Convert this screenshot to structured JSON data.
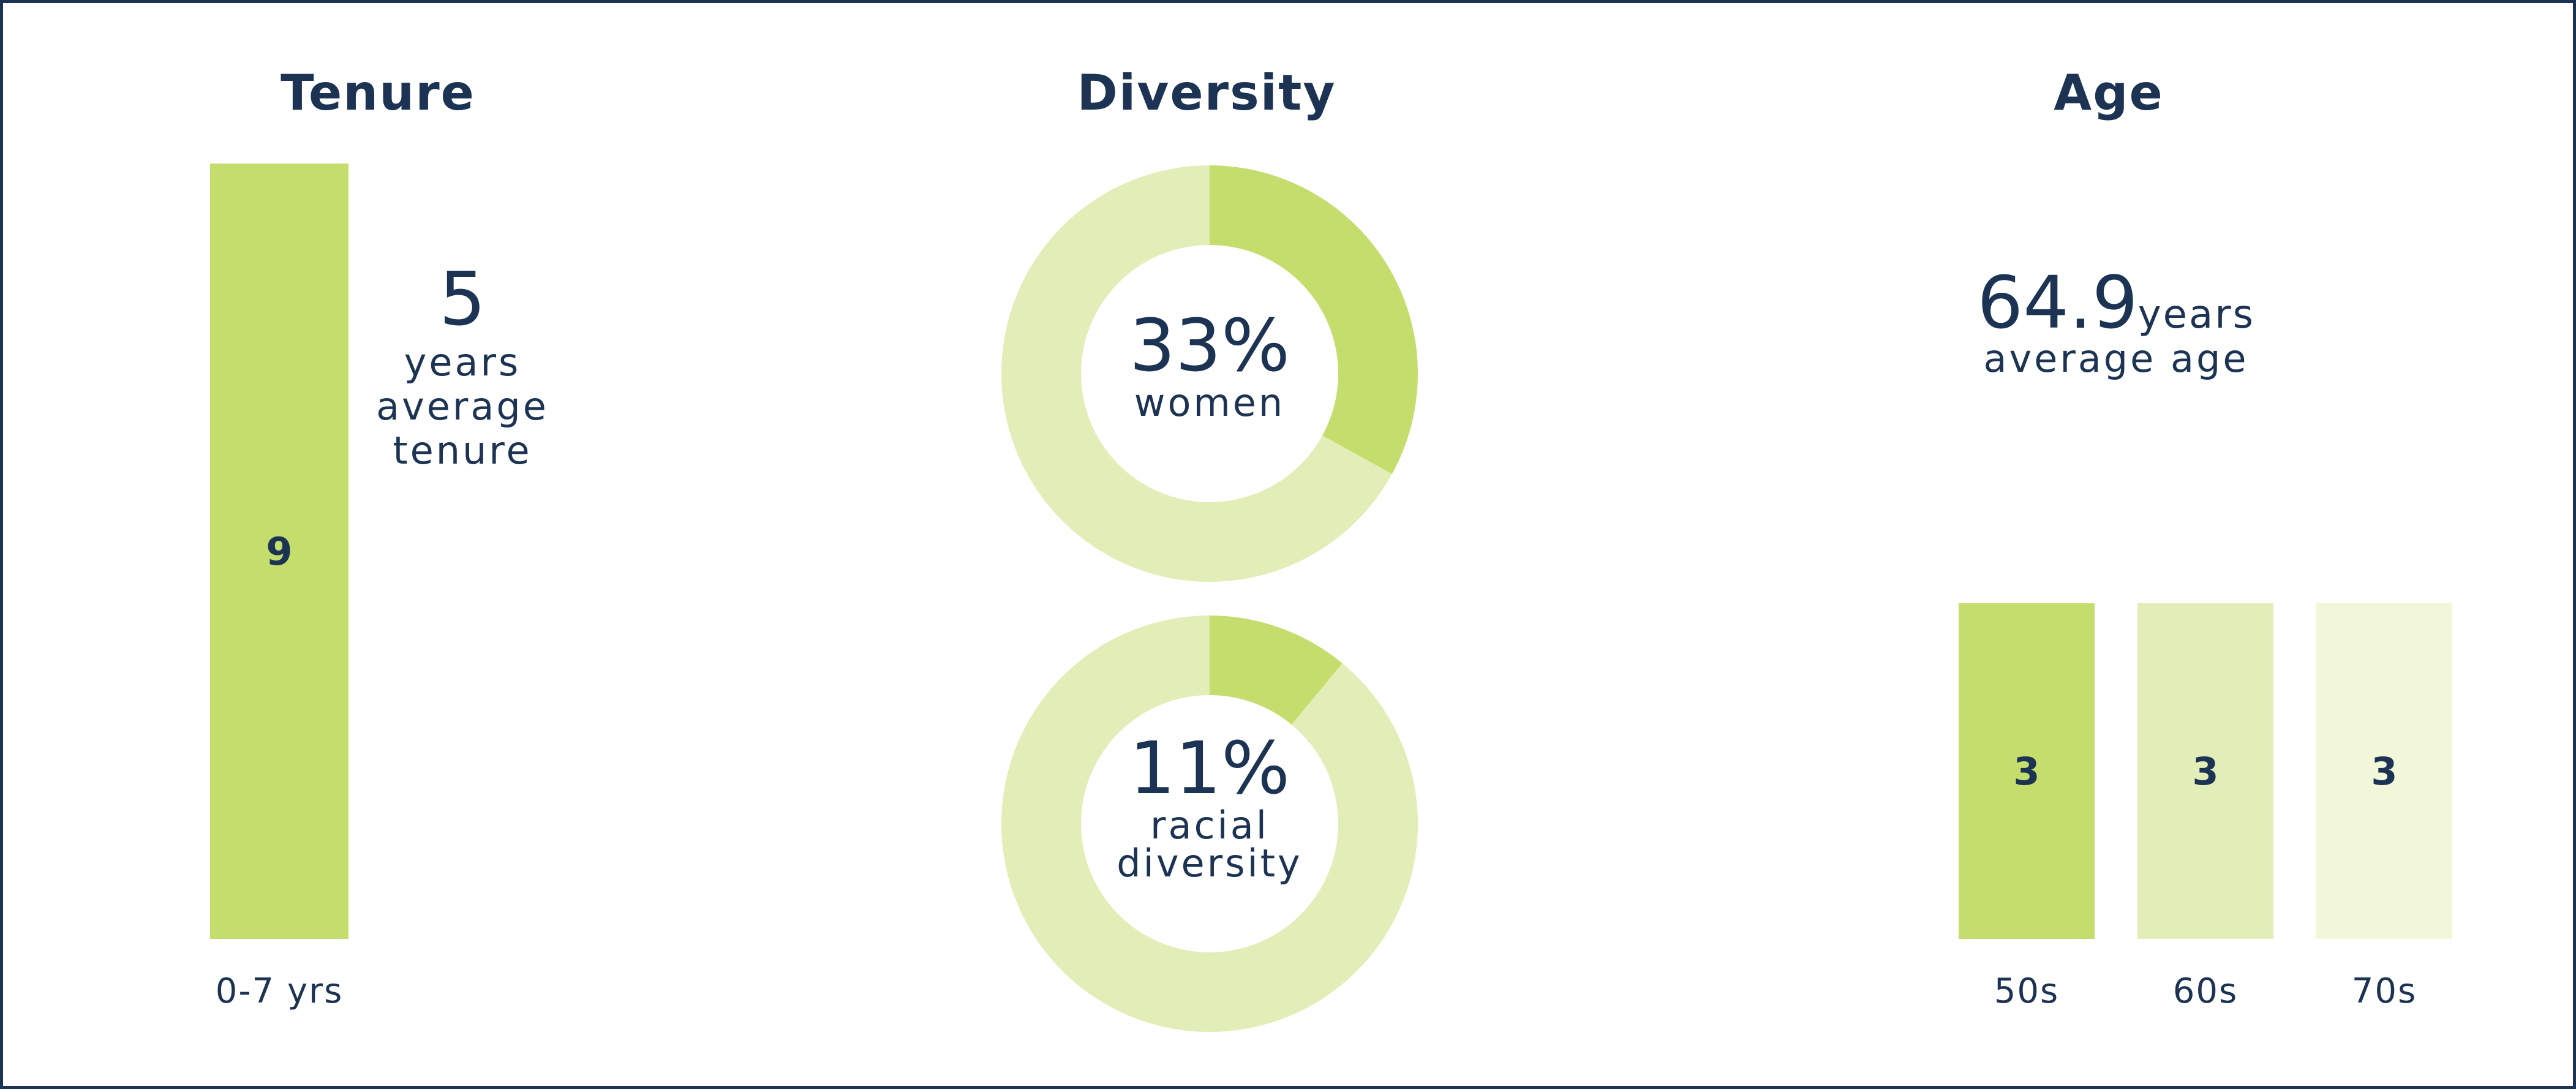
{
  "colors": {
    "navy": "#1c3353",
    "green_dark": "#c5dd6d",
    "green_mid": "#e3edb7",
    "green_light": "#f2f7d9"
  },
  "tenure": {
    "title": "Tenure",
    "stat_value": "5",
    "stat_line1": "years",
    "stat_line2": "average",
    "stat_line3": "tenure"
  },
  "diversity": {
    "title": "Diversity",
    "women": {
      "value": "33%",
      "label": "women"
    },
    "racial": {
      "value": "11%",
      "label_line1": "racial",
      "label_line2": "diversity"
    }
  },
  "age": {
    "title": "Age",
    "stat_value": "64.9",
    "stat_unit": "years",
    "stat_label": "average age"
  },
  "chart_data": [
    {
      "type": "bar",
      "title": "Tenure",
      "categories": [
        "0-7 yrs"
      ],
      "values": [
        9
      ],
      "ylim": [
        0,
        9
      ],
      "grid": false
    },
    {
      "type": "pie",
      "title": "Diversity",
      "labels": [
        "women",
        ""
      ],
      "values": [
        33,
        67
      ],
      "hole": true
    },
    {
      "type": "pie",
      "title": "Diversity",
      "labels": [
        "racial diversity",
        ""
      ],
      "values": [
        11,
        89
      ],
      "hole": true
    },
    {
      "type": "bar",
      "title": "Age",
      "categories": [
        "50s",
        "60s",
        "70s"
      ],
      "values": [
        3,
        3,
        3
      ],
      "ylim": [
        0,
        3
      ],
      "grid": false
    }
  ]
}
